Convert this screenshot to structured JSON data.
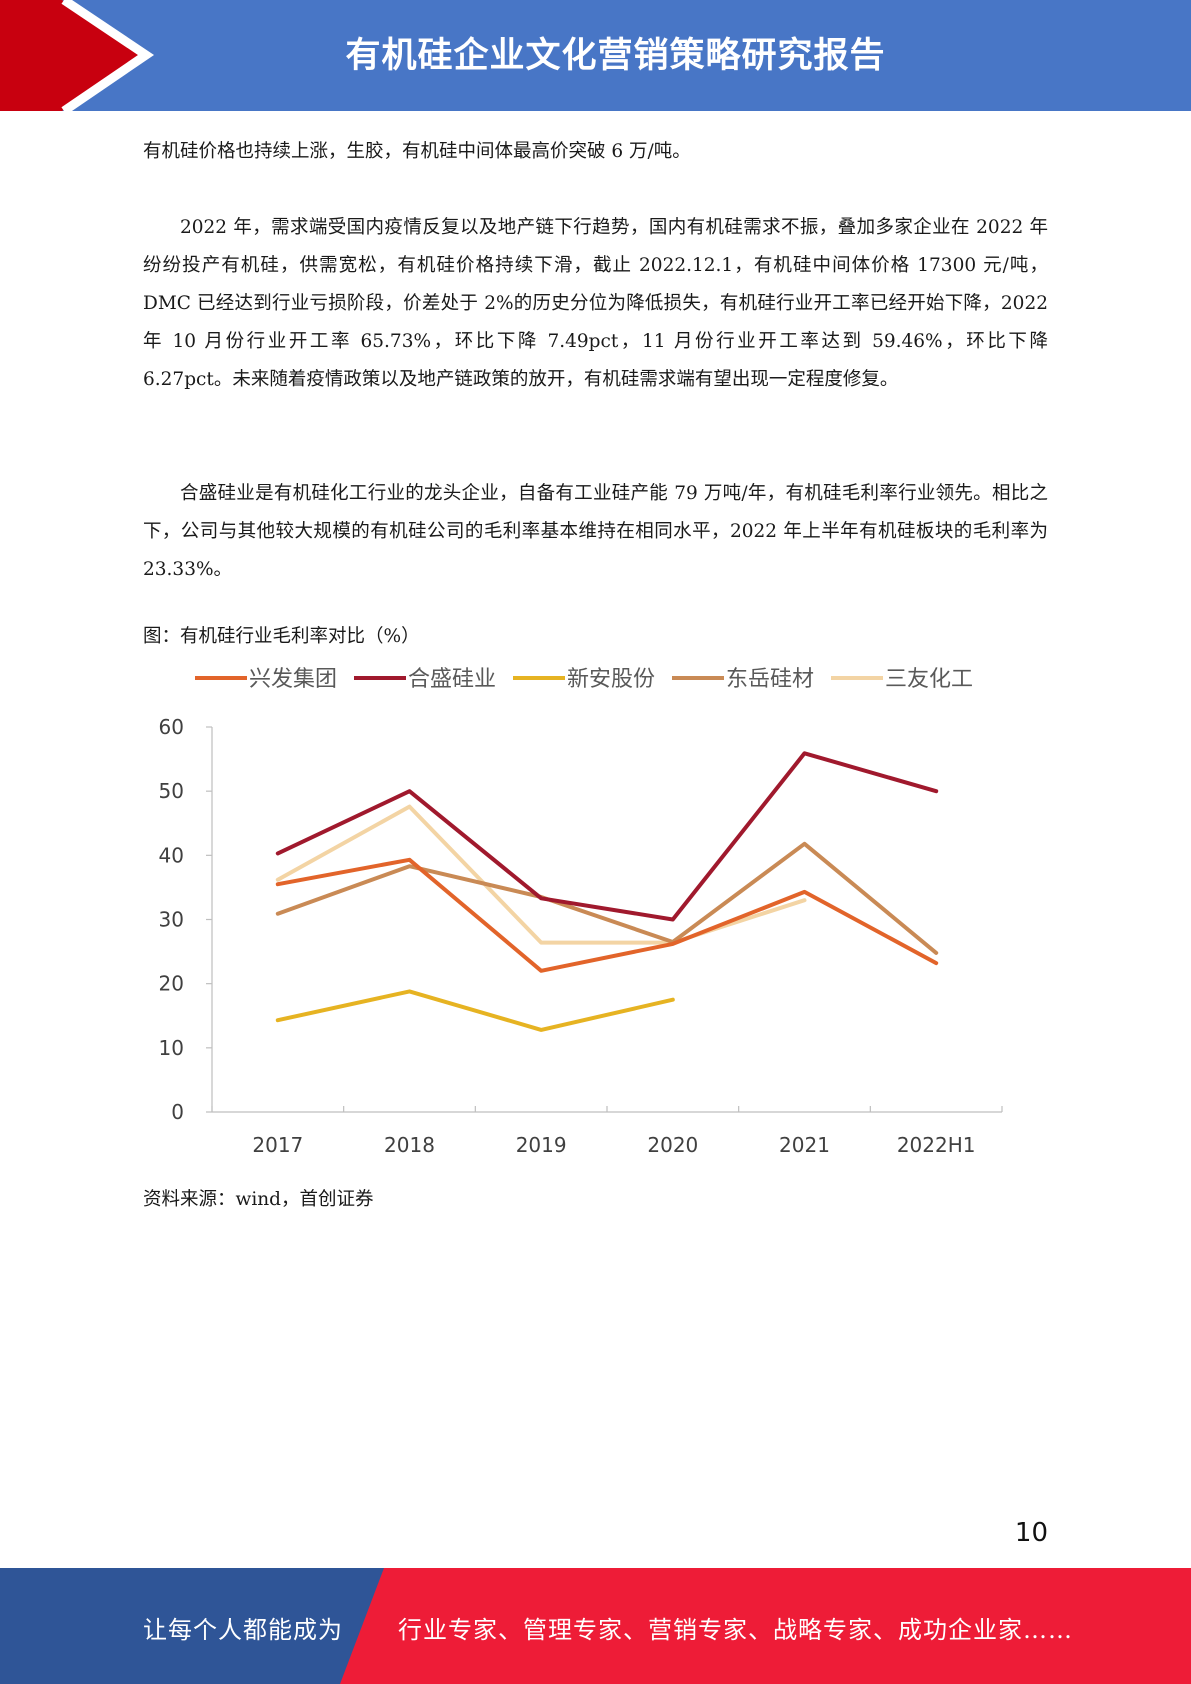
{
  "header": {
    "title": "有机硅企业文化营销策略研究报告",
    "accent_red": "#c8000f",
    "accent_blue": "#4876c6"
  },
  "paragraphs": [
    "有机硅价格也持续上涨，生胶，有机硅中间体最高价突破 6 万/吨。",
    "2022 年，需求端受国内疫情反复以及地产链下行趋势，国内有机硅需求不振，叠加多家企业在 2022 年纷纷投产有机硅，供需宽松，有机硅价格持续下滑，截止 2022.12.1，有机硅中间体价格 17300 元/吨，DMC 已经达到行业亏损阶段，价差处于 2%的历史分位为降低损失，有机硅行业开工率已经开始下降，2022 年 10 月份行业开工率 65.73%，环比下降 7.49pct，11 月份行业开工率达到 59.46%，环比下降 6.27pct。未来随着疫情政策以及地产链政策的放开，有机硅需求端有望出现一定程度修复。",
    "合盛硅业是有机硅化工行业的龙头企业，自备有工业硅产能 79 万吨/年，有机硅毛利率行业领先。相比之下，公司与其他较大规模的有机硅公司的毛利率基本维持在相同水平，2022 年上半年有机硅板块的毛利率为 23.33%。"
  ],
  "figure": {
    "caption": "图：有机硅行业毛利率对比（%）",
    "source": "资料来源：wind，首创证券"
  },
  "chart_data": {
    "type": "line",
    "title": "",
    "xlabel": "",
    "ylabel": "",
    "categories": [
      "2017",
      "2018",
      "2019",
      "2020",
      "2021",
      "2022H1"
    ],
    "ylim": [
      0,
      60
    ],
    "yticks": [
      0,
      10,
      20,
      30,
      40,
      50,
      60
    ],
    "grid": false,
    "legend_position": "top",
    "series": [
      {
        "name": "兴发集团",
        "color": "#e2642a",
        "values": [
          35.5,
          39.3,
          22.0,
          26.2,
          34.3,
          23.2
        ]
      },
      {
        "name": "合盛硅业",
        "color": "#a0192d",
        "values": [
          40.3,
          50.0,
          33.3,
          30.0,
          55.9,
          50.0
        ]
      },
      {
        "name": "新安股份",
        "color": "#e6b322",
        "values": [
          14.3,
          18.8,
          12.8,
          17.5,
          null,
          null
        ]
      },
      {
        "name": "东岳硅材",
        "color": "#c98a55",
        "values": [
          30.9,
          38.3,
          33.5,
          26.5,
          41.8,
          24.8
        ]
      },
      {
        "name": "三友化工",
        "color": "#f3d4a4",
        "values": [
          36.2,
          47.6,
          26.4,
          26.4,
          33.0,
          null
        ]
      }
    ]
  },
  "page_number": "10",
  "footer": {
    "left_text": "让每个人都能成为",
    "right_text": "行业专家、管理专家、营销专家、战略专家、成功企业家……",
    "left_color": "#2f5597",
    "right_color": "#ee1c37"
  }
}
